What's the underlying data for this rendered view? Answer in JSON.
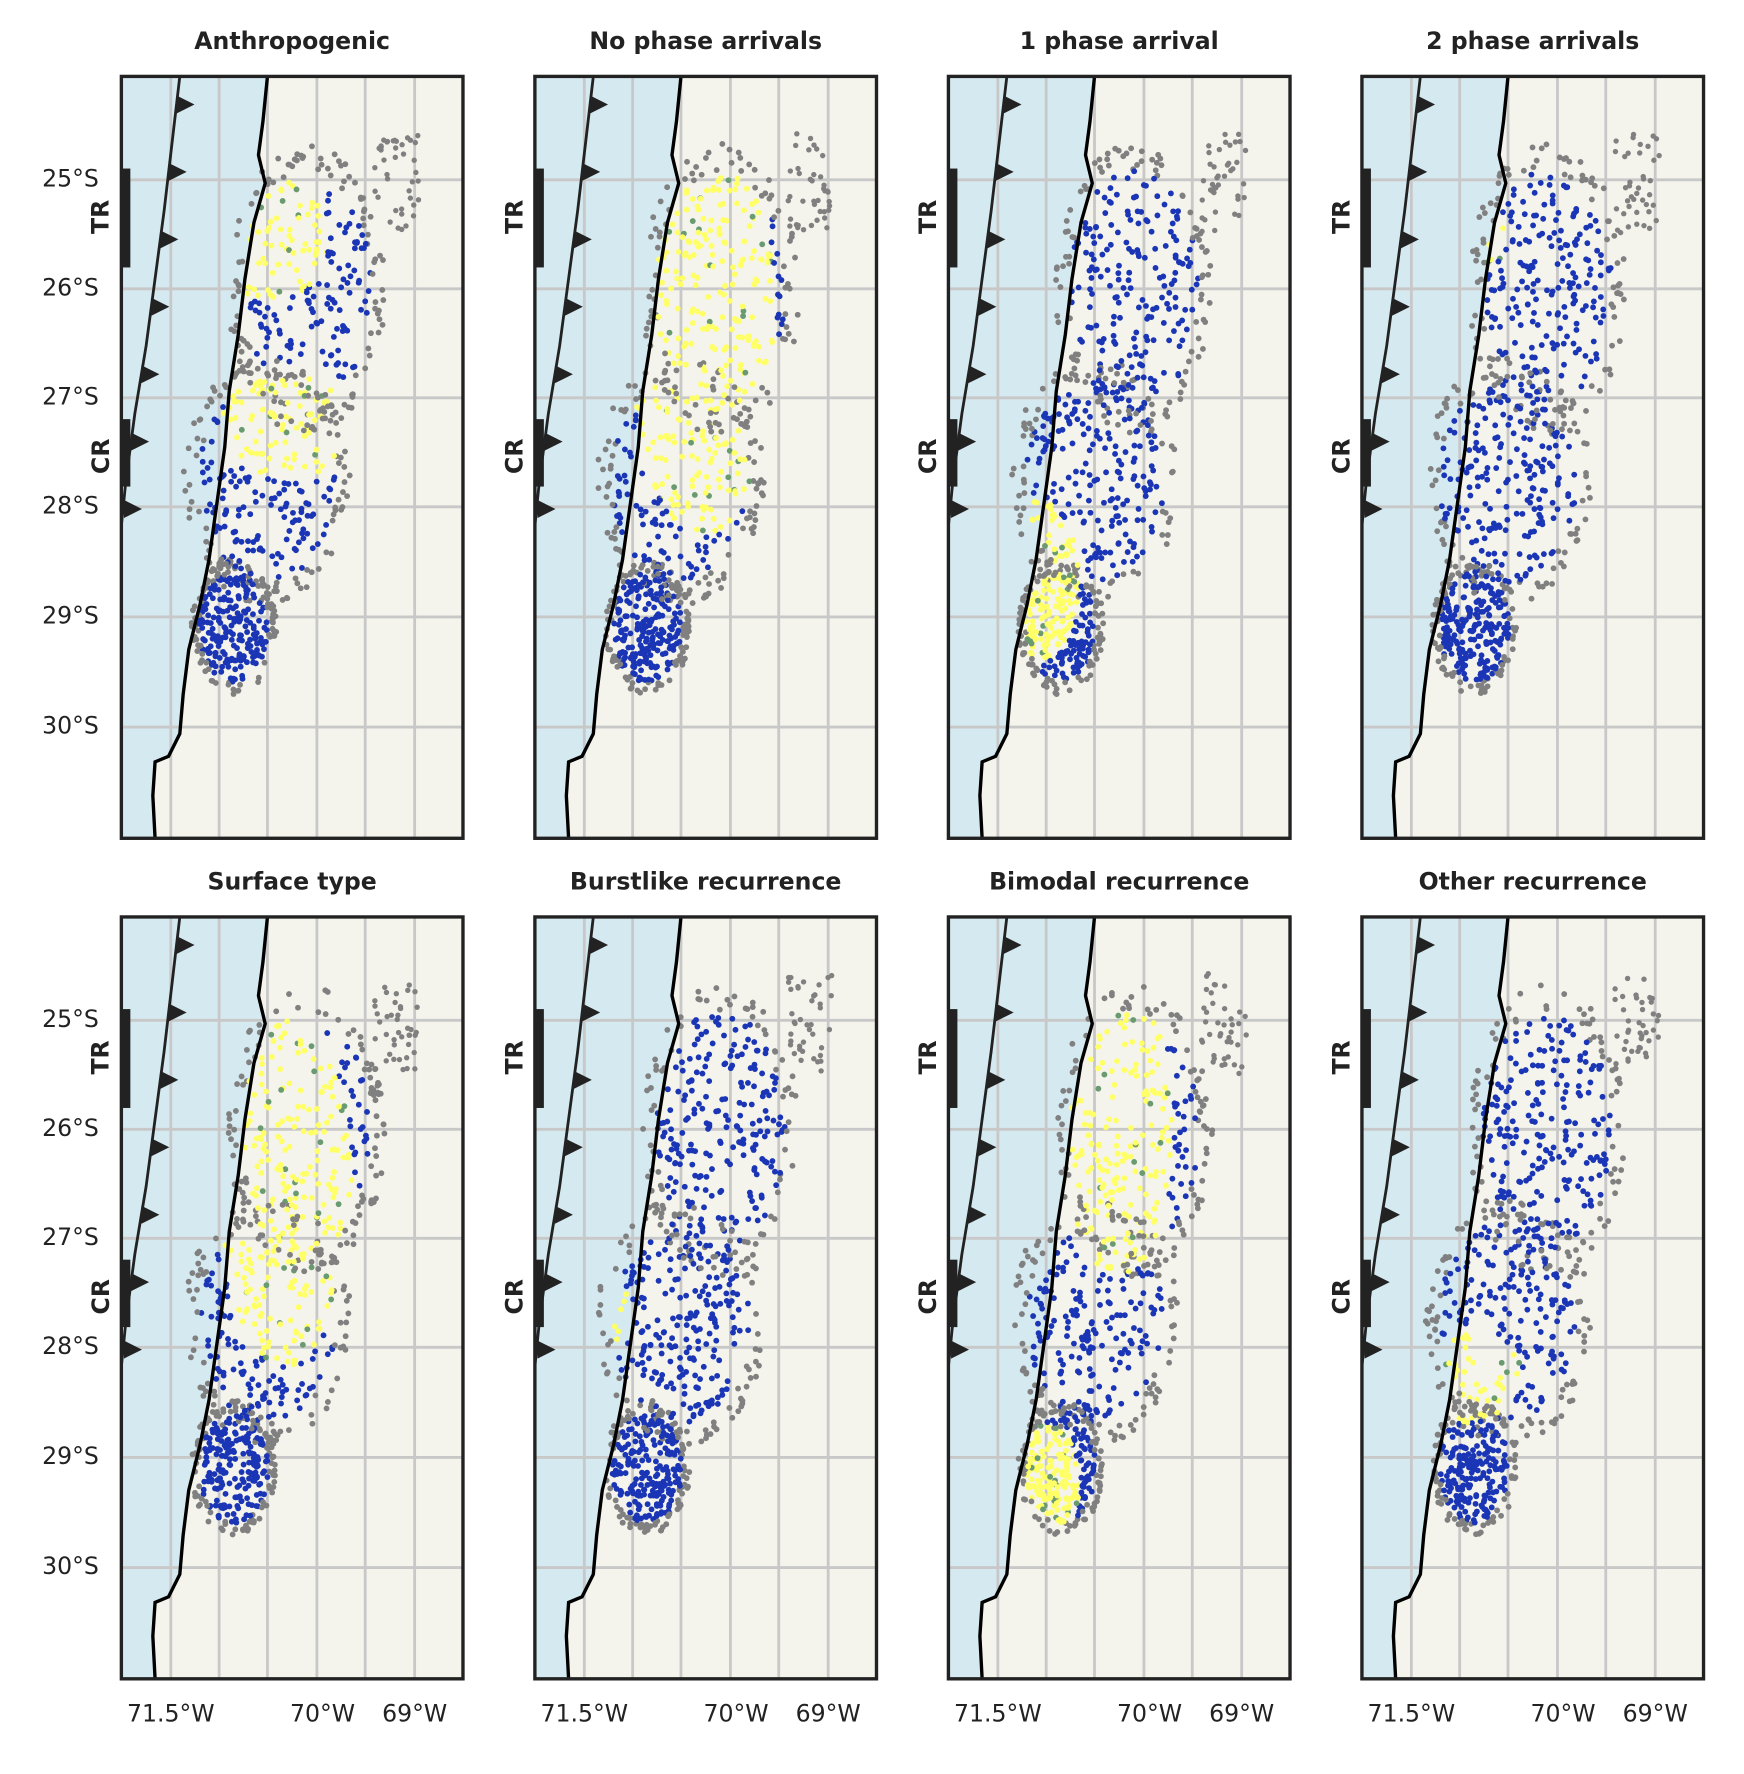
{
  "panels": [
    {
      "title": "Anthropogenic"
    },
    {
      "title": "No phase arrivals"
    },
    {
      "title": "1 phase arrival"
    },
    {
      "title": "2 phase arrivals"
    },
    {
      "title": "Surface type"
    },
    {
      "title": "Burstlike recurrence"
    },
    {
      "title": "Bimodal recurrence"
    },
    {
      "title": "Other recurrence"
    }
  ],
  "lat_labels": [
    "25°S",
    "26°S",
    "27°S",
    "28°S",
    "29°S",
    "30°S"
  ],
  "lon_labels": [
    "71.5°W",
    "70°W",
    "69°W"
  ],
  "zones": [
    "TR",
    "CR"
  ]
}
